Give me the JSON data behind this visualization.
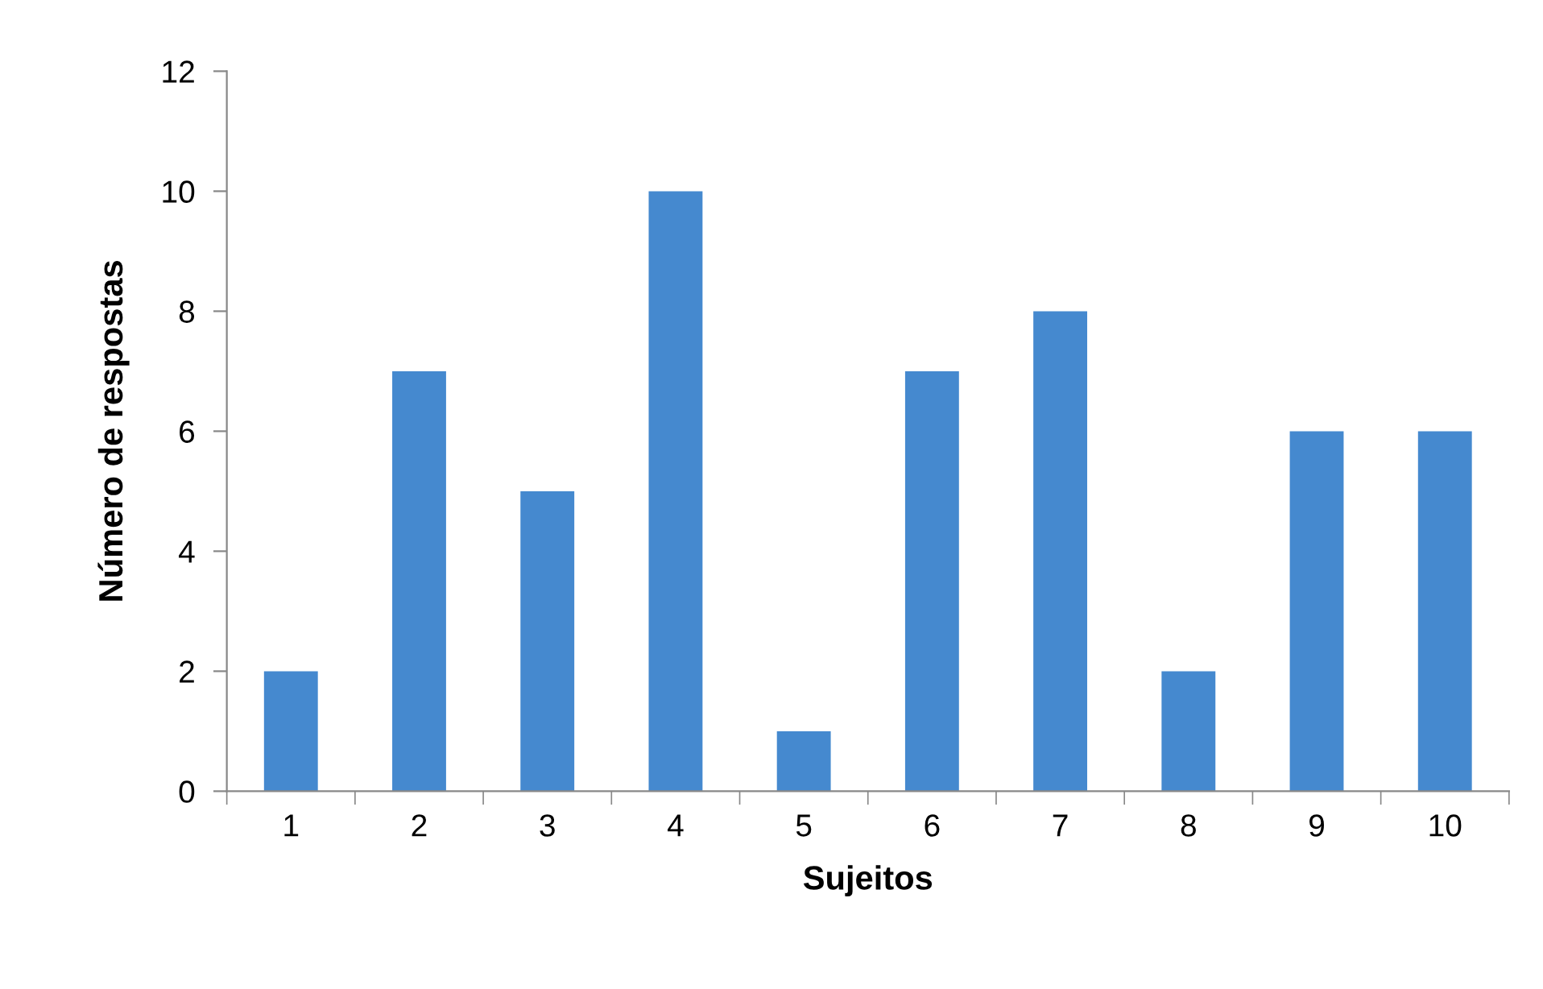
{
  "chart_data": {
    "type": "bar",
    "xlabel": "Sujeitos",
    "ylabel": "Número de respostas",
    "categories": [
      "1",
      "2",
      "3",
      "4",
      "5",
      "6",
      "7",
      "8",
      "9",
      "10"
    ],
    "values": [
      2,
      7,
      5,
      10,
      1,
      7,
      8,
      2,
      6,
      6
    ],
    "color": "#4589cf",
    "ylim": [
      0,
      12
    ],
    "yticks": [
      0,
      2,
      4,
      6,
      8,
      10,
      12
    ],
    "grid": false,
    "legend": false
  }
}
